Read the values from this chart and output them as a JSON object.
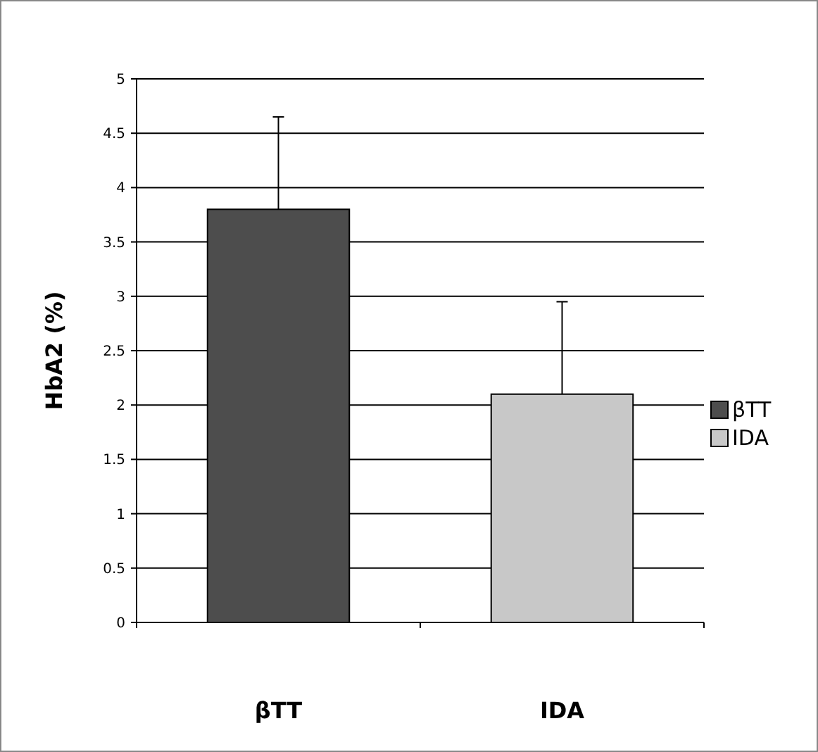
{
  "chart_data": {
    "type": "bar",
    "ylabel": "HbA2 (%)",
    "categories": [
      "βTT",
      "IDA"
    ],
    "series": [
      {
        "name": "βTT",
        "color": "#4d4d4d",
        "values": [
          3.8,
          null
        ],
        "errors": [
          [
            3.8,
            4.65
          ],
          null
        ]
      },
      {
        "name": "IDA",
        "color": "#c8c8c8",
        "values": [
          null,
          2.1
        ],
        "errors": [
          null,
          [
            2.1,
            2.95
          ]
        ]
      }
    ],
    "ylim": [
      0,
      5
    ],
    "yticks": [
      0,
      0.5,
      1,
      1.5,
      2,
      2.5,
      3,
      3.5,
      4,
      4.5,
      5
    ],
    "grid": "y",
    "legend": "right"
  }
}
